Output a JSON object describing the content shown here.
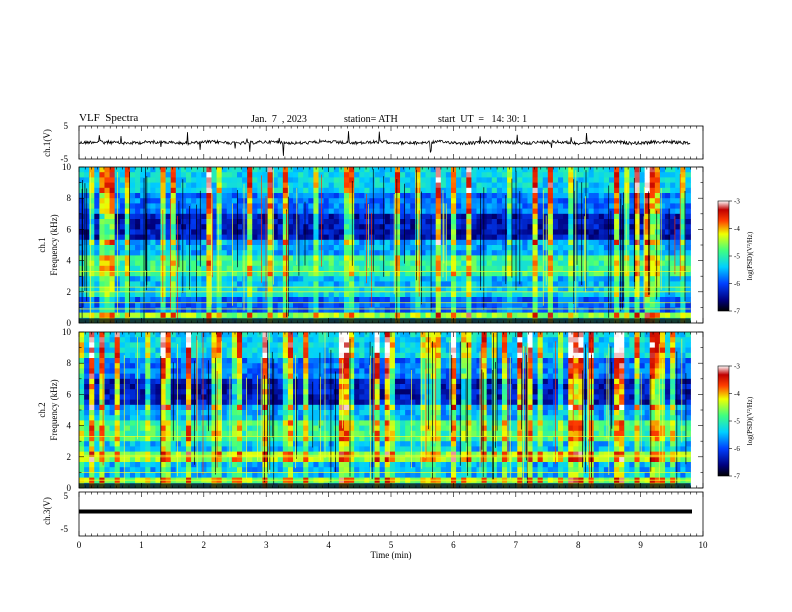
{
  "header": {
    "title": "VLF  Spectra",
    "date": "Jan.  7  , 2023",
    "station": "station= ATH",
    "start": "start  UT  =   14: 30: 1"
  },
  "chart_data": [
    {
      "type": "line",
      "panel": "ch1-waveform",
      "ylabel": "ch.1(V)",
      "ylim": [
        -5,
        5
      ],
      "yticks": [
        "5",
        "-5"
      ],
      "xlim": [
        0,
        10
      ]
    },
    {
      "type": "heatmap",
      "panel": "ch1-spectrogram",
      "ylabel_line1": "ch.1",
      "ylabel_line2": "Frequency (kHz)",
      "ylim": [
        0,
        10
      ],
      "yticks": [
        "0",
        "2",
        "4",
        "6",
        "8",
        "10"
      ],
      "xlim": [
        0,
        10
      ],
      "data_end_min": 9.8,
      "colorbar": {
        "label": "log(PSD)(V²/Hz)",
        "range": [
          -7,
          -3
        ],
        "ticks": [
          "-3",
          "-4",
          "-5",
          "-6",
          "-7"
        ]
      }
    },
    {
      "type": "heatmap",
      "panel": "ch2-spectrogram",
      "ylabel_line1": "ch.2",
      "ylabel_line2": "Frequency (kHz)",
      "ylim": [
        0,
        10
      ],
      "yticks": [
        "0",
        "2",
        "4",
        "6",
        "8",
        "10"
      ],
      "xlim": [
        0,
        10
      ],
      "data_end_min": 9.8,
      "colorbar": {
        "label": "log(PSD)(V²/Hz)",
        "range": [
          -7,
          -3
        ],
        "ticks": [
          "-3",
          "-4",
          "-5",
          "-6",
          "-7"
        ]
      }
    },
    {
      "type": "line",
      "panel": "ch3-waveform",
      "ylabel": "ch.3(V)",
      "ylim": [
        -5,
        5
      ],
      "yticks": [
        "5",
        "-5"
      ],
      "xlim": [
        0,
        10
      ],
      "xlabel": "Time  (min)",
      "xticks": [
        "0",
        "1",
        "2",
        "3",
        "4",
        "5",
        "6",
        "7",
        "8",
        "9",
        "10"
      ]
    }
  ]
}
